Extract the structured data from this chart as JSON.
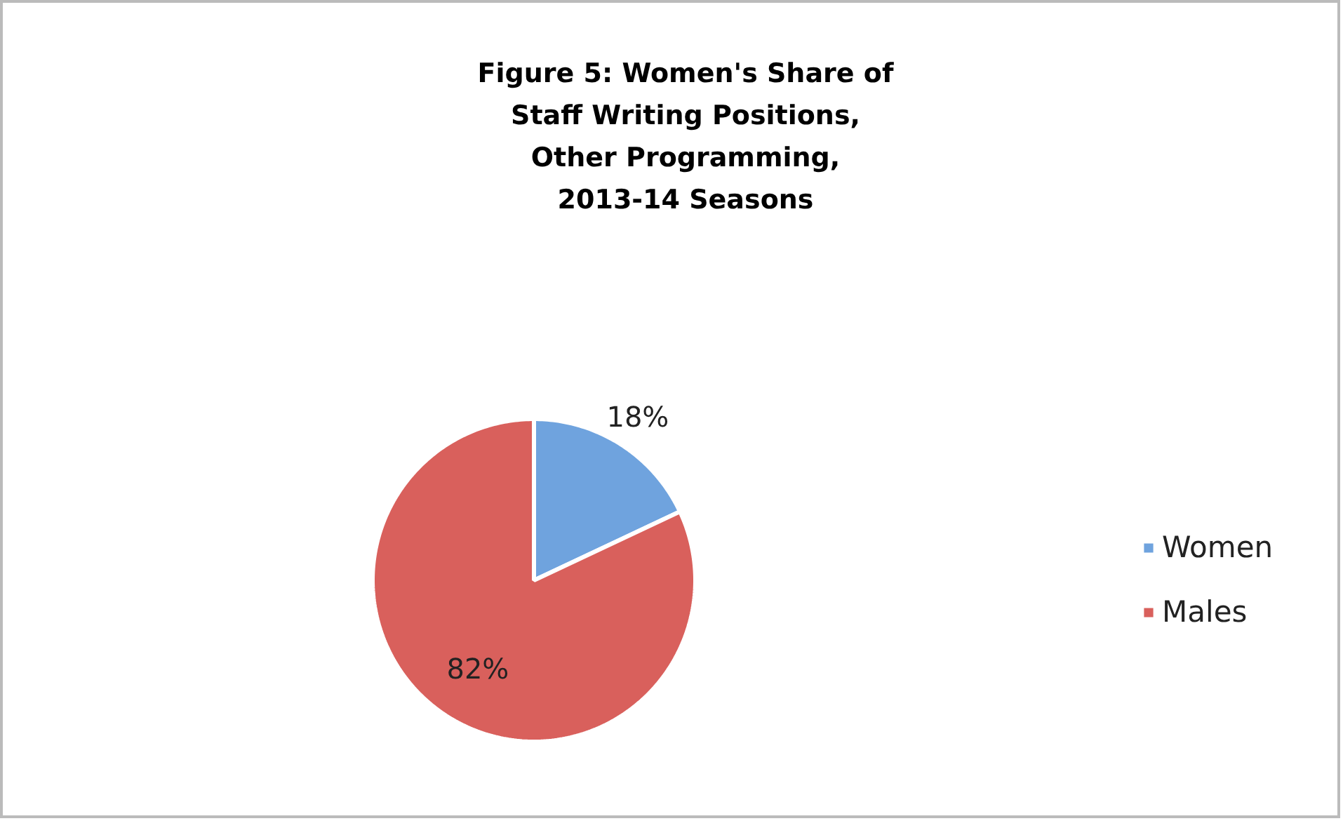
{
  "chart_data": {
    "type": "pie",
    "title": "Figure 5: Women's Share of\nStaff Writing Positions,\nOther Programming,\n2013-14 Seasons",
    "categories": [
      "Women",
      "Males"
    ],
    "values": [
      18,
      82
    ],
    "colors": [
      "#6fa3de",
      "#d9605c"
    ],
    "value_labels": [
      "18%",
      "82%"
    ],
    "legend": "right"
  }
}
